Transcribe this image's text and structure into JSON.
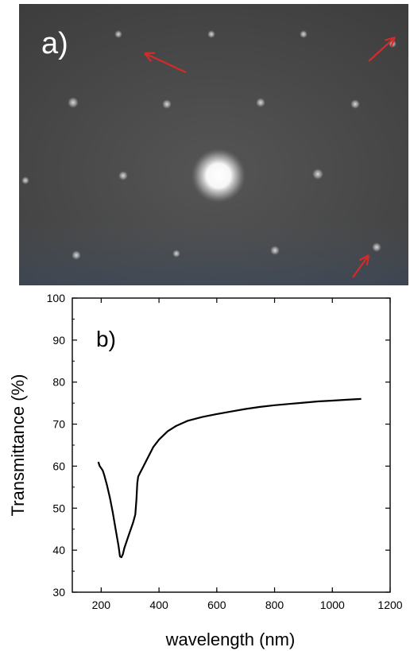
{
  "panel_a": {
    "label": "a)",
    "arrow_color": "#d42a2a",
    "background": "#4b4b4b"
  },
  "chart_data": {
    "type": "line",
    "panel_label": "b)",
    "title": "",
    "xlabel": "wavelength (nm)",
    "ylabel": "Transmittance (%)",
    "xlim": [
      100,
      1200
    ],
    "ylim": [
      30,
      100
    ],
    "x_ticks": [
      200,
      400,
      600,
      800,
      1000,
      1200
    ],
    "y_ticks": [
      30,
      40,
      50,
      60,
      70,
      80,
      90,
      100
    ],
    "grid": false,
    "line_color": "#000000",
    "series": [
      {
        "x": [
          190,
          195,
          200,
          205,
          210,
          220,
          230,
          240,
          250,
          260,
          265,
          270,
          275,
          280,
          290,
          300,
          310,
          318,
          322,
          325,
          328,
          335,
          345,
          360,
          380,
          400,
          430,
          460,
          500,
          550,
          600,
          650,
          700,
          750,
          800,
          850,
          900,
          950,
          1000,
          1050,
          1100
        ],
        "y": [
          61.0,
          60.0,
          59.5,
          59.0,
          58.0,
          55.5,
          52.5,
          49.0,
          45.0,
          41.0,
          38.5,
          38.3,
          39.0,
          40.5,
          42.5,
          44.5,
          46.5,
          48.5,
          52.0,
          56.0,
          57.5,
          58.5,
          59.8,
          61.8,
          64.5,
          66.3,
          68.3,
          69.6,
          70.8,
          71.7,
          72.4,
          73.0,
          73.6,
          74.1,
          74.5,
          74.8,
          75.1,
          75.4,
          75.6,
          75.8,
          76.0
        ]
      }
    ]
  }
}
